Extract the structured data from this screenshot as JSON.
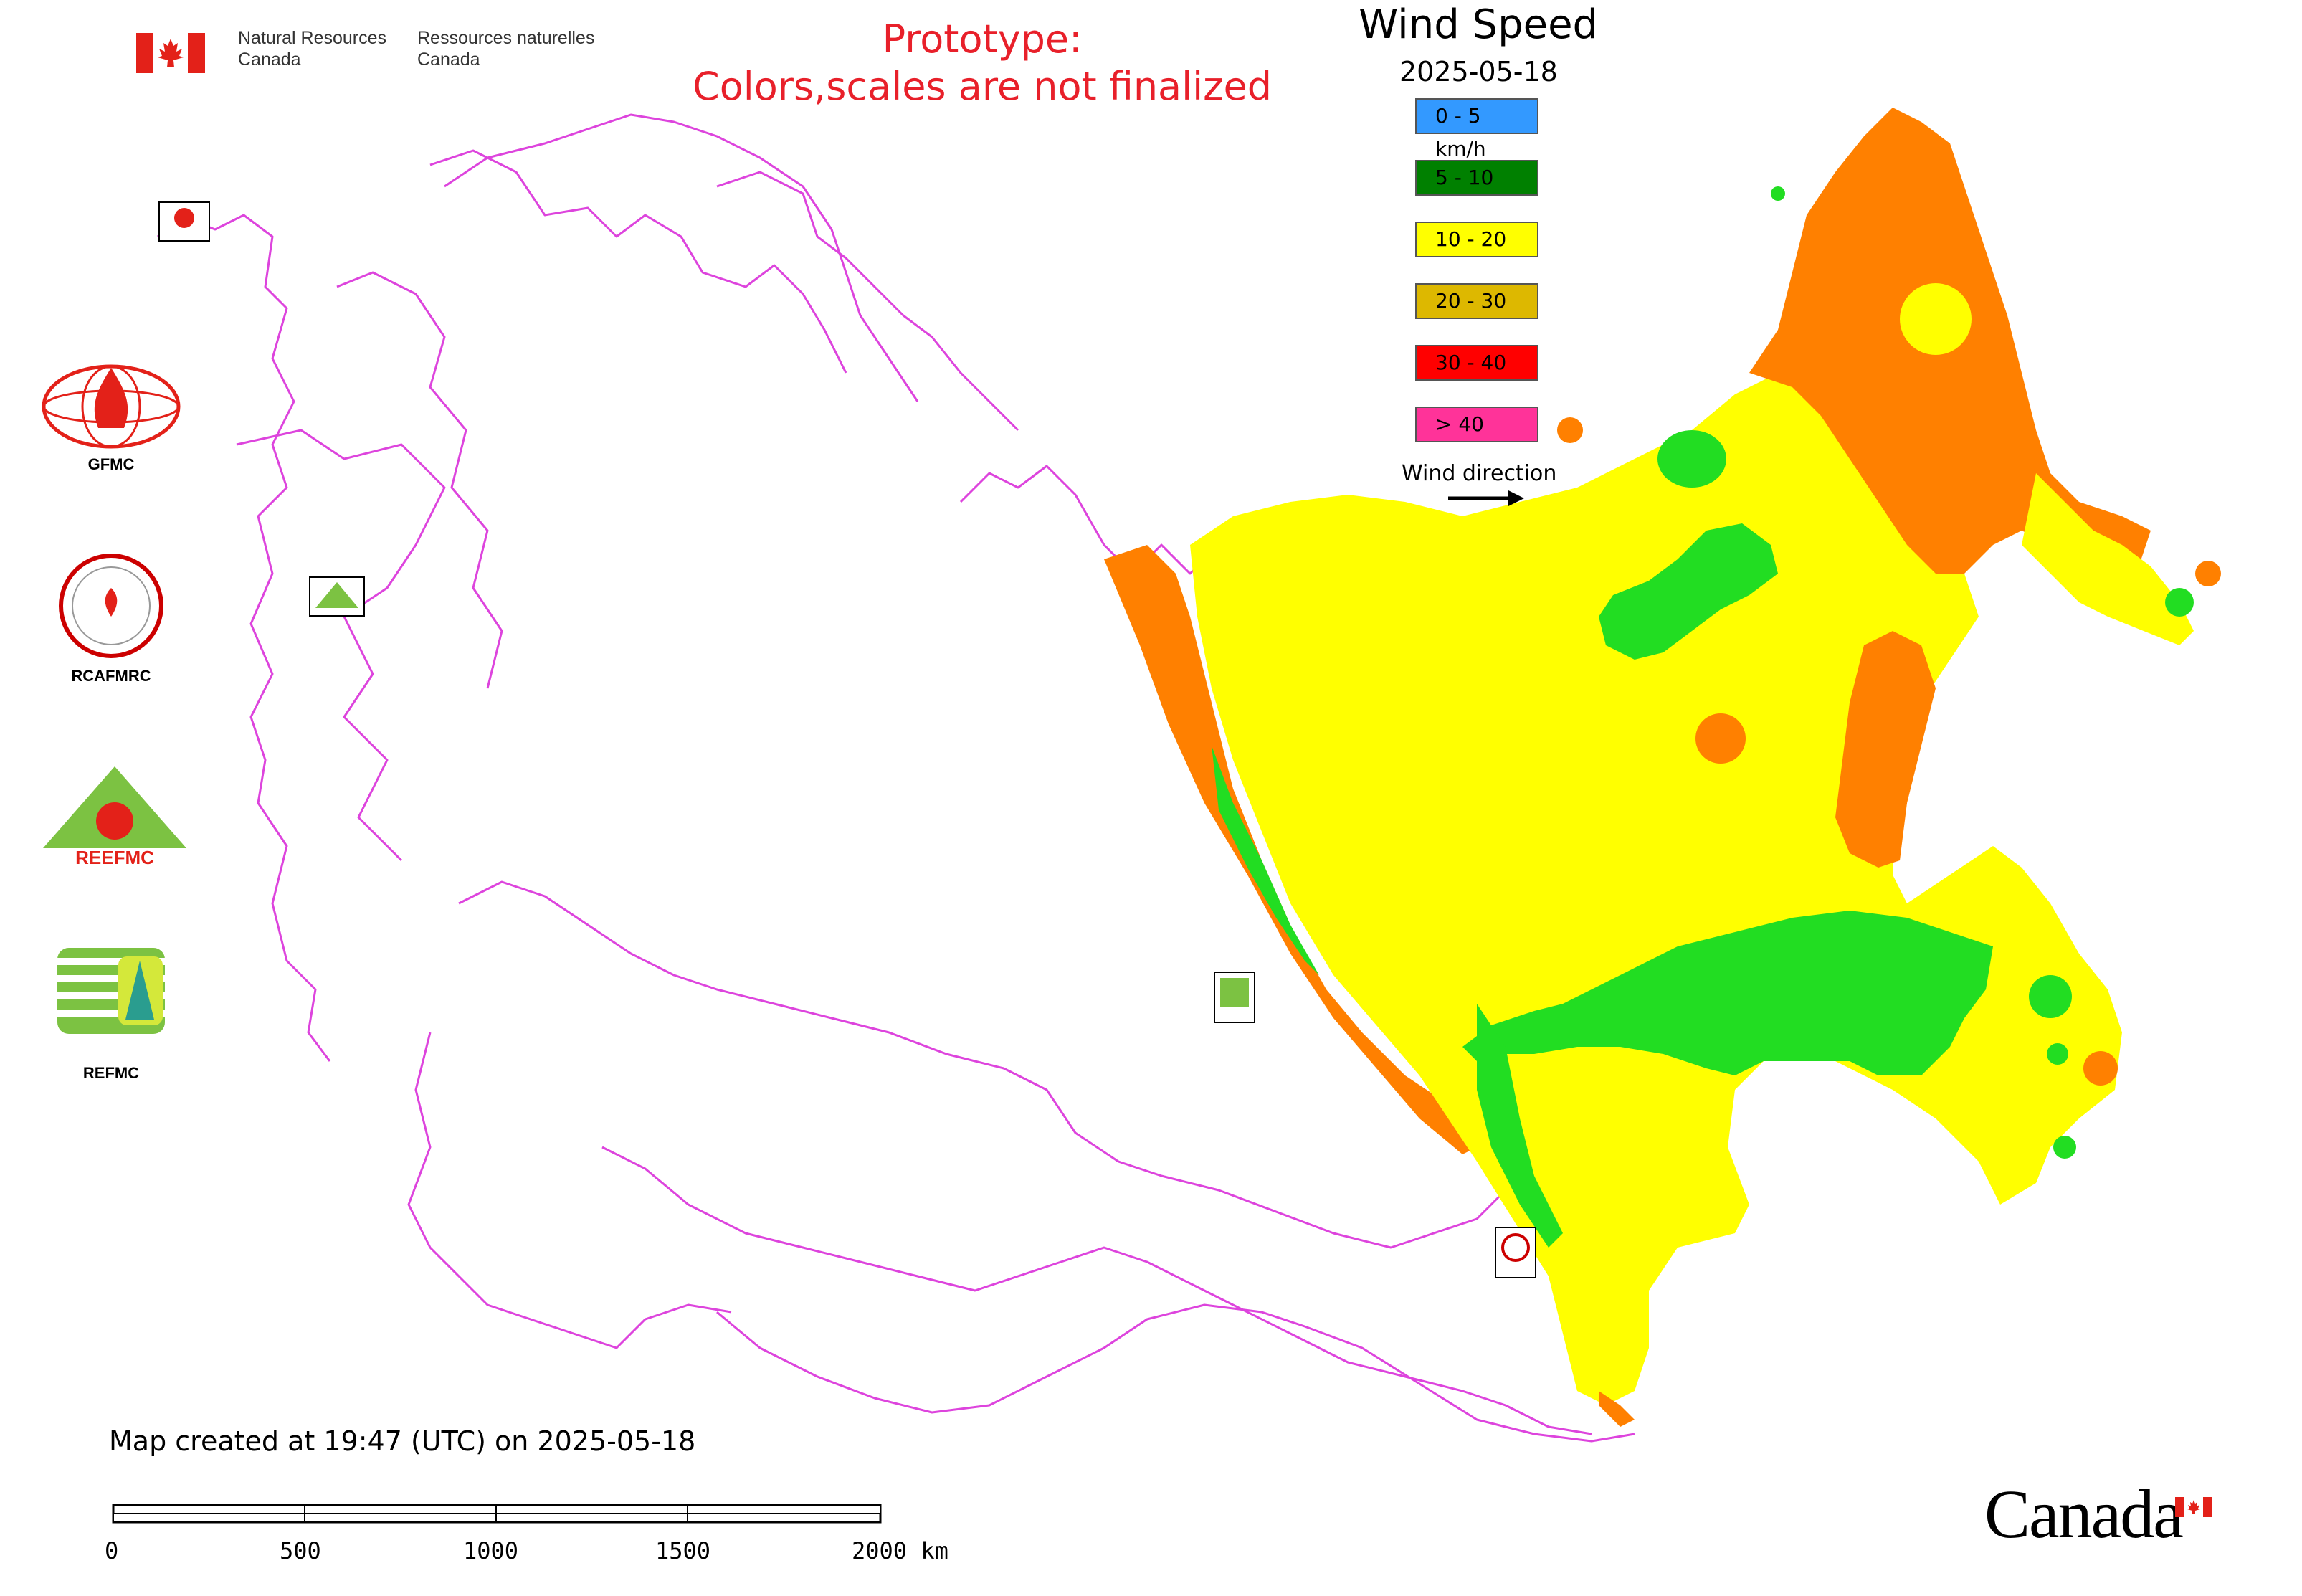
{
  "header": {
    "org_en_line1": "Natural Resources",
    "org_en_line2": "Canada",
    "org_fr_line1": "Ressources naturelles",
    "org_fr_line2": "Canada",
    "notice_line1": "Prototype:",
    "notice_line2": "Colors,scales are not finalized",
    "notice_color": "#e8202a"
  },
  "legend": {
    "title": "Wind Speed",
    "date": "2025-05-18",
    "classes": [
      {
        "label": "0 - 5 km/h",
        "color": "#3399ff"
      },
      {
        "label": "5 - 10",
        "color": "#008000"
      },
      {
        "label": "10 - 20",
        "color": "#ffff00"
      },
      {
        "label": "20 - 30",
        "color": "#ddb800"
      },
      {
        "label": "30 - 40",
        "color": "#ff0000"
      },
      {
        "label": "> 40",
        "color": "#ff3399"
      }
    ],
    "wind_direction_label": "Wind direction"
  },
  "map_colors": {
    "boundary": "#dd44dd",
    "orange": "#ff8000",
    "yellow": "#ffff00",
    "light_green": "#22dd22",
    "red": "#ff0000"
  },
  "organizations": [
    {
      "name": "GFMC"
    },
    {
      "name": "RCAFMRC"
    },
    {
      "name": "REEFMC"
    },
    {
      "name": "REFMC"
    }
  ],
  "footer": {
    "created": "Map created at 19:47 (UTC) on 2025-05-18",
    "scale_ticks": [
      "0",
      "500",
      "1000",
      "1500",
      "2000 km"
    ],
    "wordmark": "Canada"
  }
}
